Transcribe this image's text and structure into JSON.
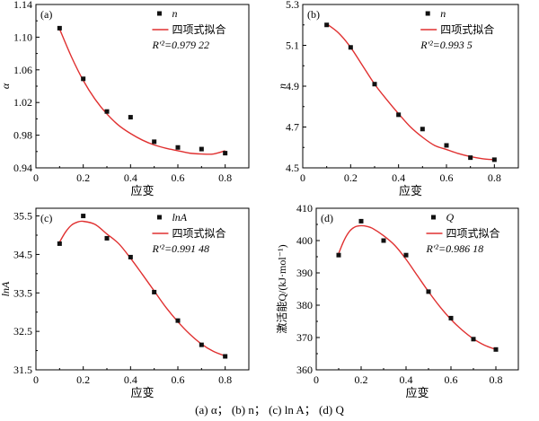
{
  "caption": "(a) α； (b) n； (c) ln A； (d) Q",
  "colors": {
    "fit_line": "#e03030",
    "marker": "#111111",
    "axis": "#000000"
  },
  "chart_data": [
    {
      "type": "scatter",
      "panel_label": "(a)",
      "xlabel": "应变",
      "ylabel": "α",
      "xlim": [
        0,
        0.9
      ],
      "ylim": [
        0.94,
        1.14
      ],
      "xticks": [
        "0",
        "0.2",
        "0.4",
        "0.6",
        "0.8"
      ],
      "yticks": [
        "0.94",
        "0.98",
        "1.02",
        "1.06",
        "1.10",
        "1.14"
      ],
      "legend": {
        "position": "top-right",
        "marker_label": "n",
        "fit_label": "四项式拟合",
        "r2": "R'²=0.979 22"
      },
      "series": [
        {
          "kind": "points",
          "x": [
            0.1,
            0.2,
            0.3,
            0.4,
            0.5,
            0.6,
            0.7,
            0.8
          ],
          "y": [
            1.111,
            1.049,
            1.009,
            1.002,
            0.972,
            0.965,
            0.963,
            0.958
          ]
        },
        {
          "kind": "fit",
          "x": [
            0.1,
            0.15,
            0.2,
            0.25,
            0.3,
            0.35,
            0.4,
            0.45,
            0.5,
            0.55,
            0.6,
            0.65,
            0.7,
            0.75,
            0.8
          ],
          "y": [
            1.11,
            1.076,
            1.047,
            1.024,
            1.006,
            0.992,
            0.982,
            0.974,
            0.968,
            0.964,
            0.961,
            0.958,
            0.957,
            0.957,
            0.961
          ]
        }
      ]
    },
    {
      "type": "scatter",
      "panel_label": "(b)",
      "xlabel": "应变",
      "ylabel": "n",
      "xlim": [
        0,
        0.9
      ],
      "ylim": [
        4.5,
        5.3
      ],
      "xticks": [
        "0",
        "0.2",
        "0.4",
        "0.6",
        "0.8"
      ],
      "yticks": [
        "4.5",
        "4.7",
        "4.9",
        "5.1",
        "5.3"
      ],
      "legend": {
        "position": "top-right",
        "marker_label": "n",
        "fit_label": "四项式拟合",
        "r2": "R'²=0.993 5"
      },
      "series": [
        {
          "kind": "points",
          "x": [
            0.1,
            0.2,
            0.3,
            0.4,
            0.5,
            0.6,
            0.7,
            0.8
          ],
          "y": [
            5.2,
            5.09,
            4.91,
            4.76,
            4.69,
            4.61,
            4.55,
            4.54
          ]
        },
        {
          "kind": "fit",
          "x": [
            0.1,
            0.15,
            0.2,
            0.25,
            0.3,
            0.35,
            0.4,
            0.45,
            0.5,
            0.55,
            0.6,
            0.65,
            0.7,
            0.75,
            0.8
          ],
          "y": [
            5.205,
            5.16,
            5.09,
            5.0,
            4.91,
            4.835,
            4.765,
            4.7,
            4.65,
            4.61,
            4.59,
            4.57,
            4.555,
            4.545,
            4.54
          ]
        }
      ]
    },
    {
      "type": "scatter",
      "panel_label": "(c)",
      "xlabel": "应变",
      "ylabel": "lnA",
      "xlim": [
        0,
        0.9
      ],
      "ylim": [
        31.5,
        35.7
      ],
      "xticks": [
        "0",
        "0.2",
        "0.4",
        "0.6",
        "0.8"
      ],
      "yticks": [
        "31.5",
        "32.5",
        "33.5",
        "34.5",
        "35.5"
      ],
      "legend": {
        "position": "top-right",
        "marker_label": "lnA",
        "fit_label": "四项式拟合",
        "r2": "R'²=0.991 48"
      },
      "series": [
        {
          "kind": "points",
          "x": [
            0.1,
            0.2,
            0.3,
            0.4,
            0.5,
            0.6,
            0.7,
            0.8
          ],
          "y": [
            34.78,
            35.5,
            34.92,
            34.43,
            33.52,
            32.78,
            32.15,
            31.85
          ]
        },
        {
          "kind": "fit",
          "x": [
            0.1,
            0.125,
            0.15,
            0.175,
            0.2,
            0.25,
            0.3,
            0.35,
            0.4,
            0.45,
            0.5,
            0.55,
            0.6,
            0.65,
            0.7,
            0.75,
            0.8
          ],
          "y": [
            34.82,
            35.08,
            35.26,
            35.34,
            35.36,
            35.28,
            35.03,
            34.78,
            34.4,
            33.98,
            33.55,
            33.12,
            32.75,
            32.43,
            32.17,
            31.98,
            31.86
          ]
        }
      ]
    },
    {
      "type": "scatter",
      "panel_label": "(d)",
      "xlabel": "应变",
      "ylabel": "激活能Q/(kJ·mol⁻¹)",
      "xlim": [
        0,
        0.9
      ],
      "ylim": [
        360,
        410
      ],
      "xticks": [
        "0",
        "0.2",
        "0.4",
        "0.6",
        "0.8"
      ],
      "yticks": [
        "360",
        "370",
        "380",
        "390",
        "400",
        "410"
      ],
      "legend": {
        "position": "top-right",
        "marker_label": "Q",
        "fit_label": "四项式拟合",
        "r2": "R'²=0.986 18"
      },
      "series": [
        {
          "kind": "points",
          "x": [
            0.1,
            0.2,
            0.3,
            0.4,
            0.5,
            0.6,
            0.7,
            0.8
          ],
          "y": [
            395.5,
            406.0,
            400.0,
            395.5,
            384.2,
            376.0,
            369.5,
            366.3
          ]
        },
        {
          "kind": "fit",
          "x": [
            0.1,
            0.125,
            0.15,
            0.175,
            0.2,
            0.225,
            0.25,
            0.3,
            0.35,
            0.4,
            0.45,
            0.5,
            0.55,
            0.6,
            0.65,
            0.7,
            0.75,
            0.8
          ],
          "y": [
            396.0,
            400.2,
            403.0,
            404.3,
            404.6,
            404.4,
            403.8,
            401.5,
            398.5,
            394.2,
            389.2,
            384.2,
            379.6,
            375.6,
            372.3,
            369.6,
            367.6,
            366.3
          ]
        }
      ]
    }
  ]
}
